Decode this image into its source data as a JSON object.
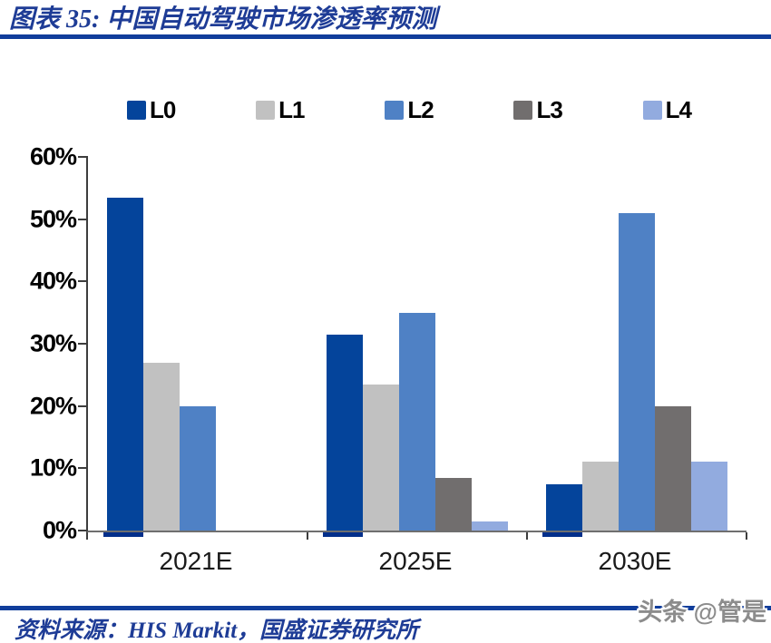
{
  "header": {
    "title": "图表 35:  中国自动驾驶市场渗透率预测"
  },
  "footer": {
    "source": "资料来源：HIS Markit，国盛证券研究所",
    "watermark": "头条 @管是"
  },
  "colors": {
    "rule_blue": "#103D9B",
    "title_blue": "#1E3C96",
    "axis_gray": "#3d3d3d",
    "watermark_gray": "#8C8C8C"
  },
  "chart_data": {
    "type": "bar",
    "title": "中国自动驾驶市场渗透率预测",
    "categories": [
      "2021E",
      "2025E",
      "2030E"
    ],
    "series": [
      {
        "name": "L0",
        "color": "#04449B",
        "values": [
          53.5,
          31.5,
          7.5
        ]
      },
      {
        "name": "L1",
        "color": "#C1C1C1",
        "values": [
          27,
          23.5,
          11
        ]
      },
      {
        "name": "L2",
        "color": "#4F81C5",
        "values": [
          20,
          35,
          51
        ]
      },
      {
        "name": "L3",
        "color": "#716E6E",
        "values": [
          0,
          8.5,
          20
        ]
      },
      {
        "name": "L4",
        "color": "#92ABDF",
        "values": [
          0,
          1.5,
          11
        ]
      }
    ],
    "xlabel": "",
    "ylabel": "",
    "ylim": [
      0,
      60
    ],
    "ytick_step": 10,
    "ytick_labels": [
      "0%",
      "10%",
      "20%",
      "30%",
      "40%",
      "50%",
      "60%"
    ],
    "legend_position": "top",
    "grid": false
  }
}
